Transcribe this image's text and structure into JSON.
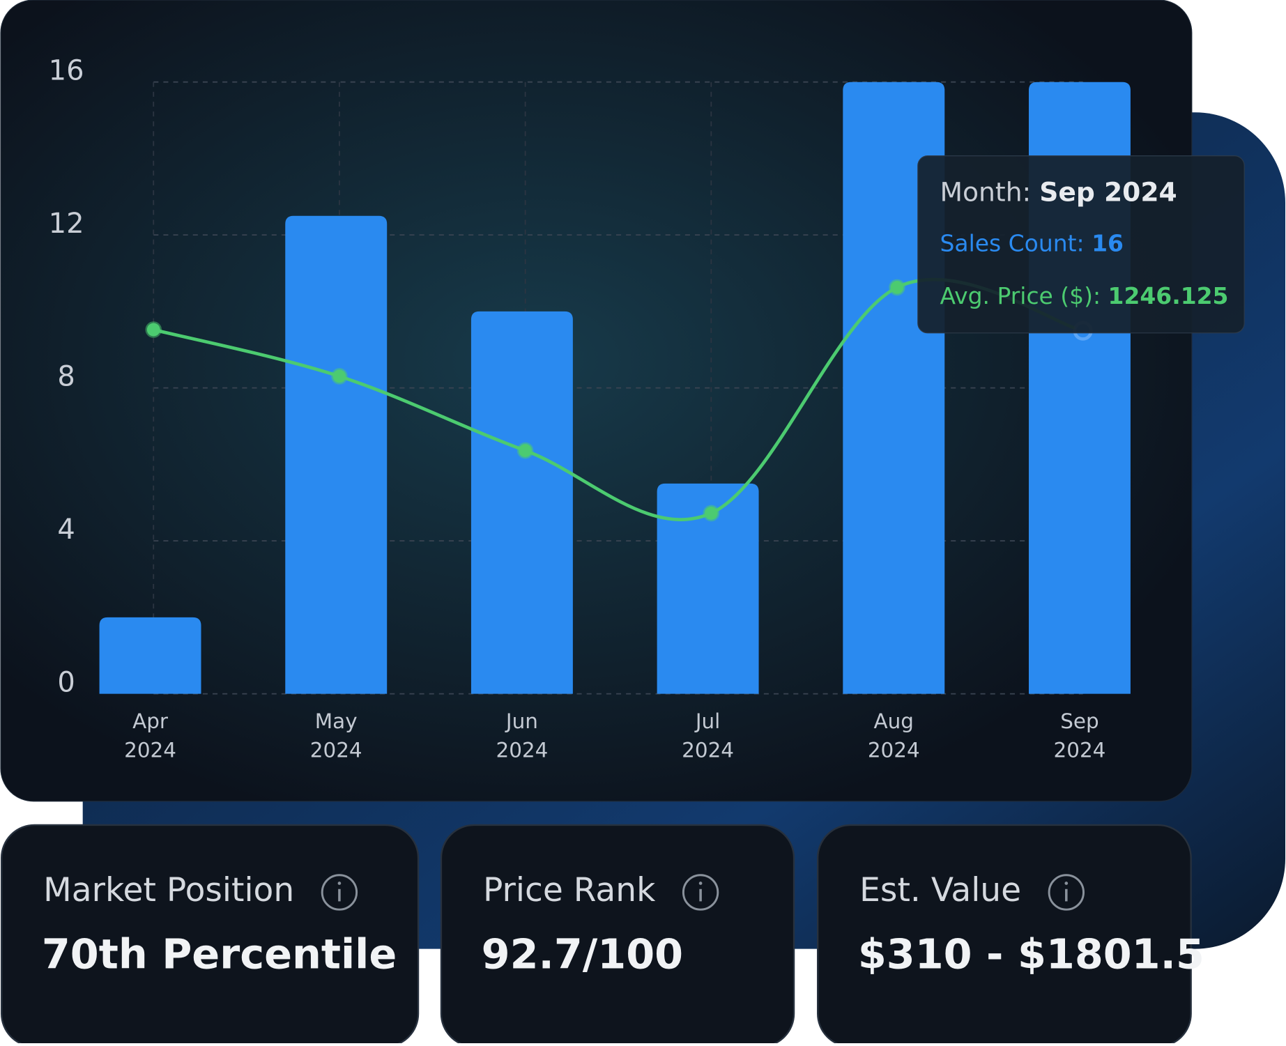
{
  "chart_data": {
    "type": "bar-line",
    "categories": [
      "Apr 2024",
      "May 2024",
      "Jun 2024",
      "Jul 2024",
      "Aug 2024",
      "Sep 2024"
    ],
    "series": [
      {
        "type": "bar",
        "color": "#2a8af0",
        "values": [
          2,
          12.5,
          10,
          5.5,
          16,
          16
        ]
      },
      {
        "type": "line",
        "color": "#4ccb70",
        "axis": "y2",
        "values": [
          1250,
          1090,
          835,
          620,
          1395,
          1246.125
        ]
      }
    ],
    "ylim": [
      0,
      16
    ],
    "yticks": [
      0,
      4,
      8,
      12,
      16
    ],
    "y2lim": [
      0,
      2100
    ],
    "grid": true,
    "tooltip": {
      "labels": [
        "Month:",
        "Sales Count:",
        "Avg. Price ($):"
      ],
      "index": 5
    }
  },
  "cards": [
    {
      "title": "Market Position",
      "value": "70th Percentile"
    },
    {
      "title": "Price Rank",
      "value": "92.7/100"
    },
    {
      "title": "Est. Value",
      "value": "$310 - $1801.5"
    }
  ]
}
